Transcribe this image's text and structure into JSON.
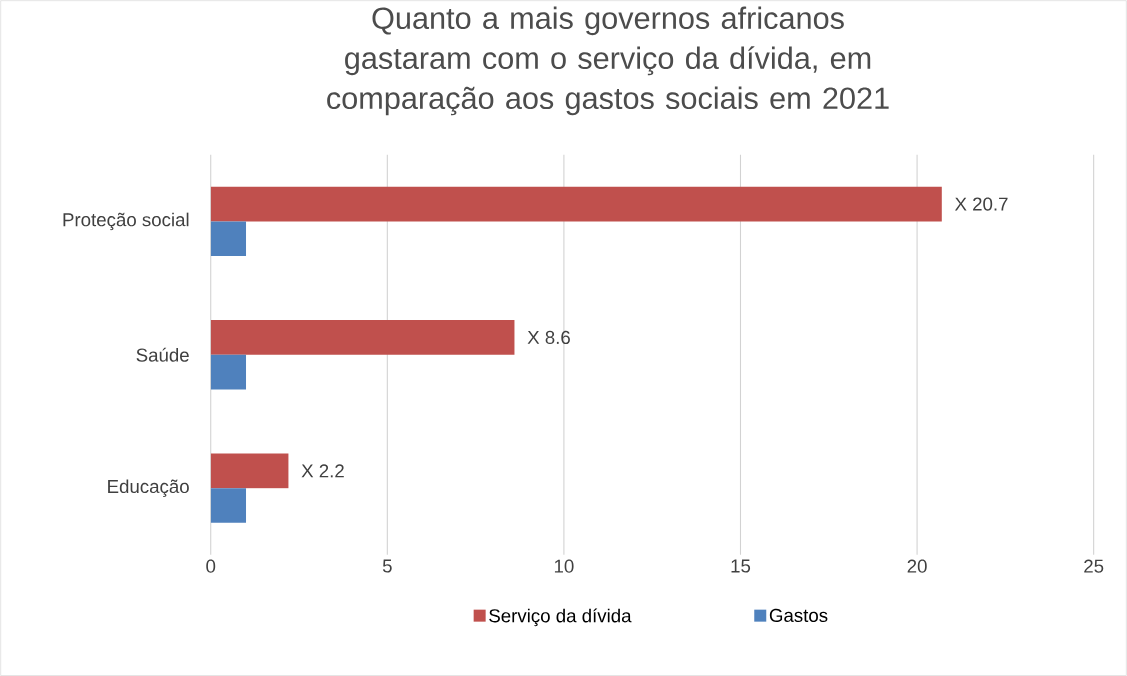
{
  "chart_data": {
    "type": "bar",
    "orientation": "horizontal",
    "title": "Quanto a mais governos africanos gastaram com o serviço da dívida, em comparação aos gastos sociais em 2021",
    "categories": [
      "Proteção social",
      "Saúde",
      "Educação"
    ],
    "series": [
      {
        "name": "Serviço da dívida",
        "color": "#c0504d",
        "values": [
          20.7,
          8.6,
          2.2
        ],
        "value_labels": [
          "X 20.7",
          "X 8.6",
          "X 2.2"
        ]
      },
      {
        "name": "Gastos",
        "color": "#4f81bd",
        "values": [
          1,
          1,
          1
        ]
      }
    ],
    "xlim": [
      0,
      25
    ],
    "xticks": [
      0,
      5,
      10,
      15,
      20,
      25
    ],
    "grid": "x",
    "legend": "bottom"
  }
}
